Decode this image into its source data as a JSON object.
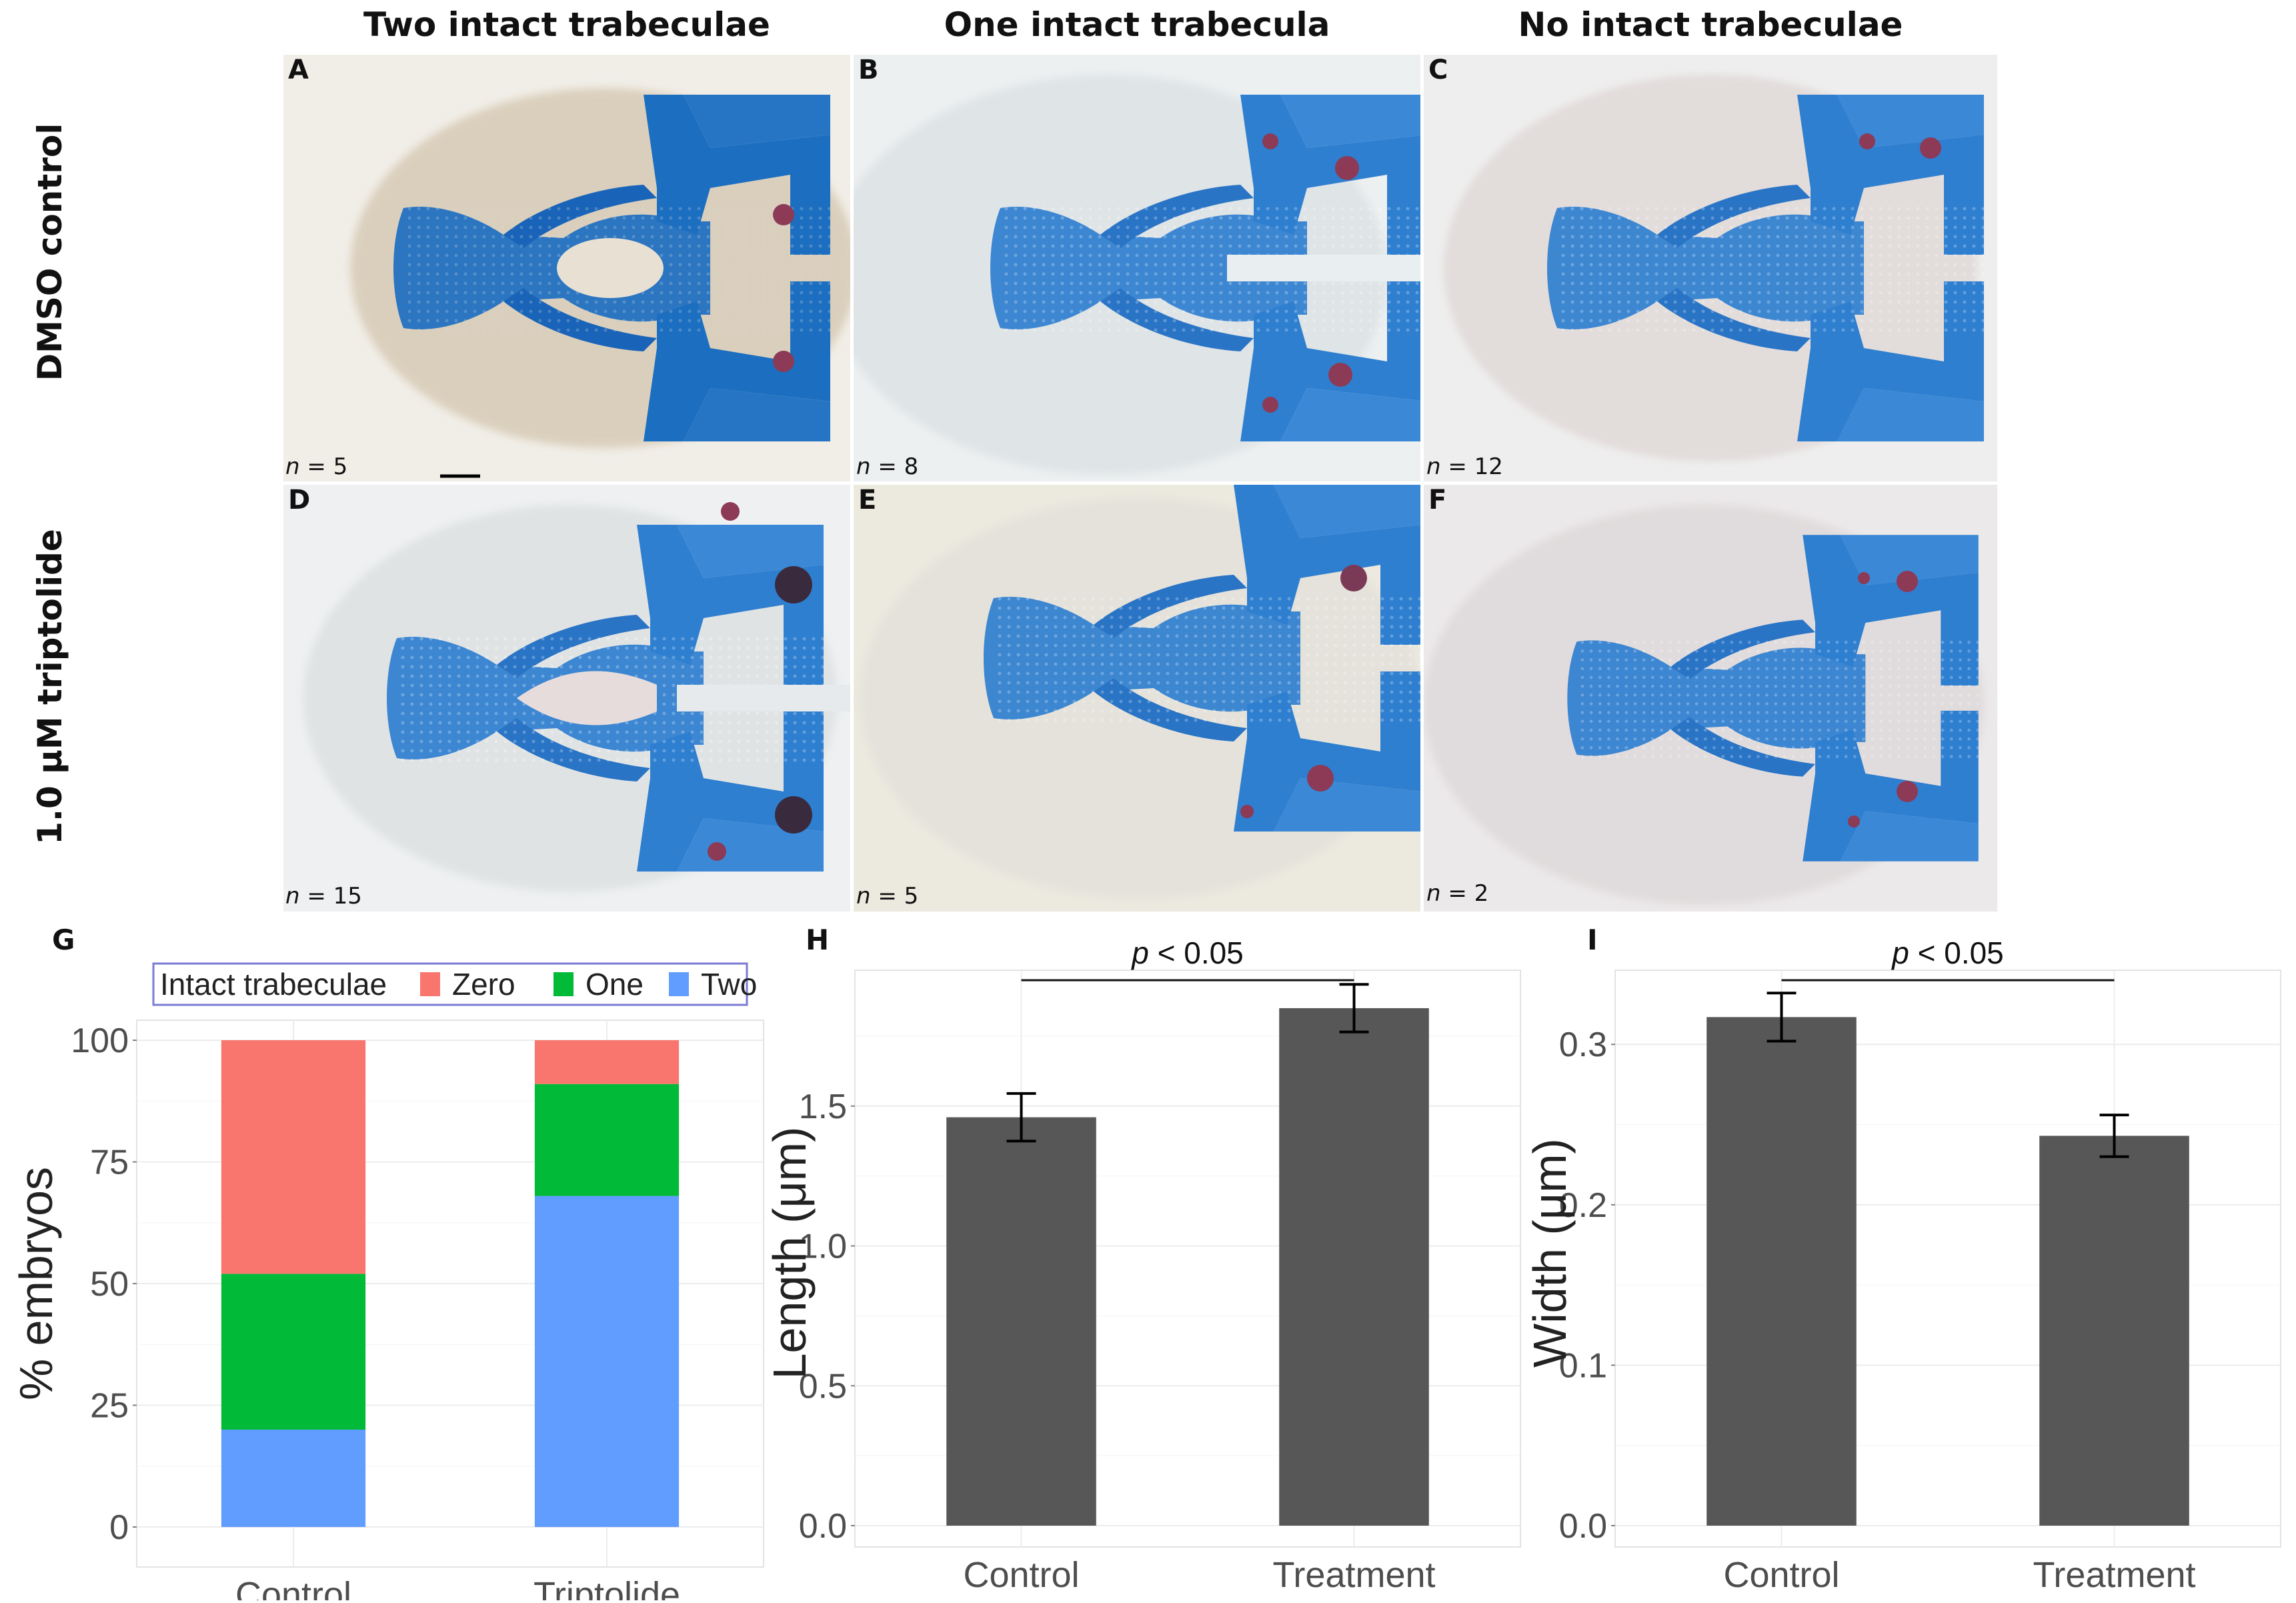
{
  "column_titles": [
    "Two intact trabeculae",
    "One intact trabecula",
    "No intact trabeculae"
  ],
  "row_titles": [
    "DMSO control",
    "1.0 μM triptolide"
  ],
  "panels": [
    {
      "letter": "A",
      "n_prefix": "n",
      "n_value": "= 5"
    },
    {
      "letter": "B",
      "n_prefix": "n",
      "n_value": "= 8"
    },
    {
      "letter": "C",
      "n_prefix": "n",
      "n_value": "= 12"
    },
    {
      "letter": "D",
      "n_prefix": "n",
      "n_value": "= 15"
    },
    {
      "letter": "E",
      "n_prefix": "n",
      "n_value": "= 5"
    },
    {
      "letter": "F",
      "n_prefix": "n",
      "n_value": "= 2"
    }
  ],
  "colors": {
    "cartilage_blue": "#2f7fd0",
    "cartilage_dark": "#1f5fb0",
    "eye_red": "#8c3a55",
    "bar_dark": "#575757",
    "zero": "#f8766d",
    "one": "#00ba38",
    "two": "#619cff"
  },
  "chart_data": [
    {
      "letter": "G",
      "type": "bar",
      "stacked": true,
      "categories": [
        "Control",
        "Triptolide"
      ],
      "series": [
        {
          "name": "Two",
          "values": [
            20,
            68
          ]
        },
        {
          "name": "One",
          "values": [
            32,
            23
          ]
        },
        {
          "name": "Zero",
          "values": [
            48,
            9
          ]
        }
      ],
      "legend_title": "Intact trabeculae",
      "legend_order": [
        "Zero",
        "One",
        "Two"
      ],
      "legend_position": "top",
      "ylabel": "% embryos",
      "ylim": [
        0,
        100
      ],
      "yticks": [
        "0",
        "25",
        "50",
        "75",
        "100"
      ],
      "grid": true
    },
    {
      "letter": "H",
      "type": "bar",
      "categories": [
        "Control",
        "Treatment"
      ],
      "values": [
        1.46,
        1.85
      ],
      "errors": [
        0.085,
        0.085
      ],
      "ylabel": "Length (μm)",
      "ylim": [
        0,
        1.95
      ],
      "yticks": [
        "0.0",
        "0.5",
        "1.0",
        "1.5"
      ],
      "annotation_prefix": "p",
      "annotation_value": "< 0.05",
      "grid": true
    },
    {
      "letter": "I",
      "type": "bar",
      "categories": [
        "Control",
        "Treatment"
      ],
      "values": [
        0.317,
        0.243
      ],
      "errors": [
        0.015,
        0.013
      ],
      "ylabel": "Width (μm)",
      "ylim": [
        0,
        0.34
      ],
      "yticks": [
        "0.0",
        "0.1",
        "0.2",
        "0.3"
      ],
      "annotation_prefix": "p",
      "annotation_value": "< 0.05",
      "grid": true
    }
  ]
}
